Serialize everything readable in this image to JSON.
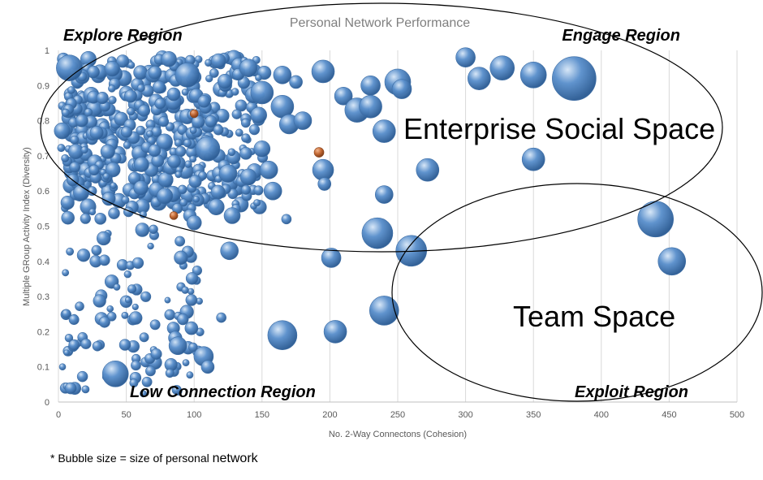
{
  "footnote": {
    "prefix": "* Bubble size = size of personal ",
    "emphasis": "network"
  },
  "colors": {
    "bubble": "#4f86c6",
    "bubble_dark": "#2e5f9a",
    "bubble_light": "#cfe0f4",
    "orange_bubble": "#c0622b",
    "grid": "#d9d9d9",
    "ellipse": "#000000"
  },
  "chart_data": {
    "type": "scatter",
    "subtype": "bubble",
    "title": "Personal Network Performance",
    "xlabel": "No. 2-Way Connectons (Cohesion)",
    "ylabel": "Multiple GRoup Activity Index (Diversity)",
    "xlim": [
      0,
      500
    ],
    "ylim": [
      0,
      1
    ],
    "x_ticks": [
      0,
      50,
      100,
      150,
      200,
      250,
      300,
      350,
      400,
      450,
      500
    ],
    "y_ticks": [
      0,
      0.1,
      0.2,
      0.3,
      0.4,
      0.5,
      0.6,
      0.7,
      0.8,
      0.9,
      1
    ],
    "grid": "vertical",
    "annotations": {
      "explore": "Explore Region",
      "engage": "Engage Region",
      "low": "Low Connection Region",
      "exploit": "Exploit Region",
      "enterprise": "Enterprise Social Space",
      "team": "Team Space"
    },
    "highlighted_points": [
      {
        "x": 8,
        "y": 0.95,
        "size": 16
      },
      {
        "x": 95,
        "y": 0.93,
        "size": 15
      },
      {
        "x": 118,
        "y": 0.97,
        "size": 9
      },
      {
        "x": 140,
        "y": 0.95,
        "size": 11
      },
      {
        "x": 165,
        "y": 0.93,
        "size": 11
      },
      {
        "x": 195,
        "y": 0.94,
        "size": 14
      },
      {
        "x": 175,
        "y": 0.91,
        "size": 8
      },
      {
        "x": 150,
        "y": 0.88,
        "size": 14
      },
      {
        "x": 165,
        "y": 0.84,
        "size": 14
      },
      {
        "x": 170,
        "y": 0.79,
        "size": 12
      },
      {
        "x": 180,
        "y": 0.8,
        "size": 11
      },
      {
        "x": 210,
        "y": 0.87,
        "size": 11
      },
      {
        "x": 220,
        "y": 0.83,
        "size": 15
      },
      {
        "x": 230,
        "y": 0.9,
        "size": 12
      },
      {
        "x": 230,
        "y": 0.84,
        "size": 14
      },
      {
        "x": 250,
        "y": 0.91,
        "size": 16
      },
      {
        "x": 253,
        "y": 0.89,
        "size": 12
      },
      {
        "x": 240,
        "y": 0.77,
        "size": 14
      },
      {
        "x": 300,
        "y": 0.98,
        "size": 12
      },
      {
        "x": 310,
        "y": 0.92,
        "size": 14
      },
      {
        "x": 327,
        "y": 0.95,
        "size": 15
      },
      {
        "x": 350,
        "y": 0.93,
        "size": 16
      },
      {
        "x": 380,
        "y": 0.92,
        "size": 27
      },
      {
        "x": 350,
        "y": 0.69,
        "size": 14
      },
      {
        "x": 272,
        "y": 0.66,
        "size": 14
      },
      {
        "x": 240,
        "y": 0.59,
        "size": 11
      },
      {
        "x": 195,
        "y": 0.66,
        "size": 13
      },
      {
        "x": 196,
        "y": 0.62,
        "size": 8
      },
      {
        "x": 192,
        "y": 0.71,
        "size": 6,
        "color": "orange"
      },
      {
        "x": 155,
        "y": 0.66,
        "size": 11
      },
      {
        "x": 158,
        "y": 0.6,
        "size": 11
      },
      {
        "x": 140,
        "y": 0.64,
        "size": 10
      },
      {
        "x": 150,
        "y": 0.72,
        "size": 10
      },
      {
        "x": 125,
        "y": 0.65,
        "size": 11
      },
      {
        "x": 110,
        "y": 0.72,
        "size": 15
      },
      {
        "x": 100,
        "y": 0.51,
        "size": 9
      },
      {
        "x": 128,
        "y": 0.53,
        "size": 10
      },
      {
        "x": 126,
        "y": 0.43,
        "size": 11
      },
      {
        "x": 168,
        "y": 0.52,
        "size": 6
      },
      {
        "x": 235,
        "y": 0.48,
        "size": 19
      },
      {
        "x": 260,
        "y": 0.43,
        "size": 19
      },
      {
        "x": 201,
        "y": 0.41,
        "size": 12
      },
      {
        "x": 240,
        "y": 0.26,
        "size": 18
      },
      {
        "x": 165,
        "y": 0.19,
        "size": 18
      },
      {
        "x": 204,
        "y": 0.2,
        "size": 14
      },
      {
        "x": 440,
        "y": 0.52,
        "size": 22
      },
      {
        "x": 452,
        "y": 0.4,
        "size": 17
      },
      {
        "x": 107,
        "y": 0.13,
        "size": 12
      },
      {
        "x": 110,
        "y": 0.1,
        "size": 8
      },
      {
        "x": 42,
        "y": 0.08,
        "size": 16
      },
      {
        "x": 88,
        "y": 0.16,
        "size": 11
      },
      {
        "x": 120,
        "y": 0.24,
        "size": 6
      },
      {
        "x": 98,
        "y": 0.21,
        "size": 8
      },
      {
        "x": 98,
        "y": 0.29,
        "size": 7
      },
      {
        "x": 3,
        "y": 0.1,
        "size": 4
      },
      {
        "x": 85,
        "y": 0.53,
        "size": 5,
        "color": "orange"
      },
      {
        "x": 100,
        "y": 0.82,
        "size": 5,
        "color": "orange"
      }
    ]
  }
}
